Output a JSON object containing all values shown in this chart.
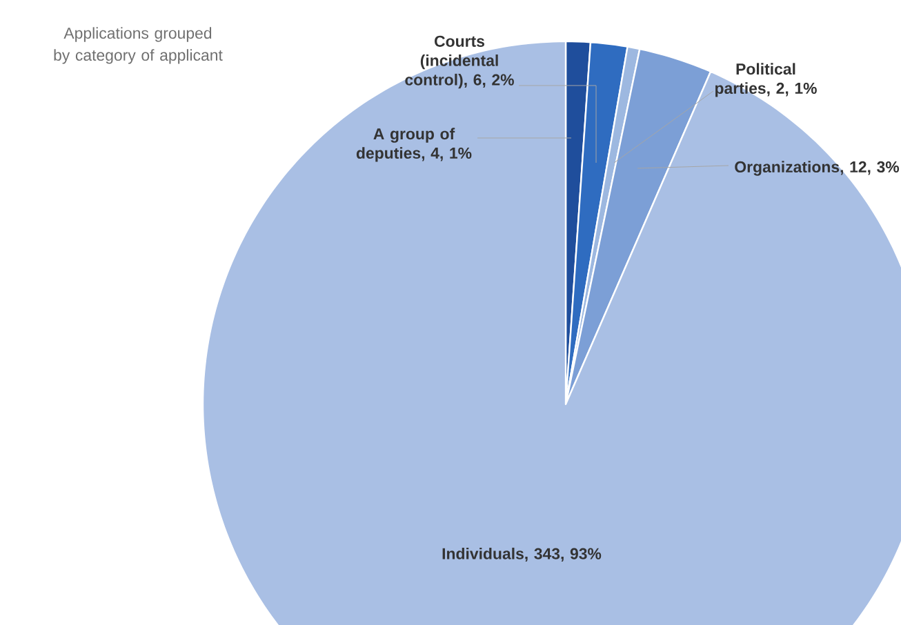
{
  "chart_data": {
    "type": "pie",
    "title": "Applications grouped by category of applicant",
    "categories": [
      "A group of deputies",
      "Courts (incidental control)",
      "Political parties",
      "Organizations",
      "Individuals"
    ],
    "values": [
      4,
      6,
      2,
      12,
      343
    ],
    "colors": [
      "#1f4e9c",
      "#2f6cc0",
      "#9db8e0",
      "#7c9fd6",
      "#a9bfe4"
    ],
    "value_labels": [
      ", 4, 1%",
      ", 6, 2%",
      ", 2, 1%",
      ", 12, 3%",
      ", 343, 93%"
    ]
  }
}
